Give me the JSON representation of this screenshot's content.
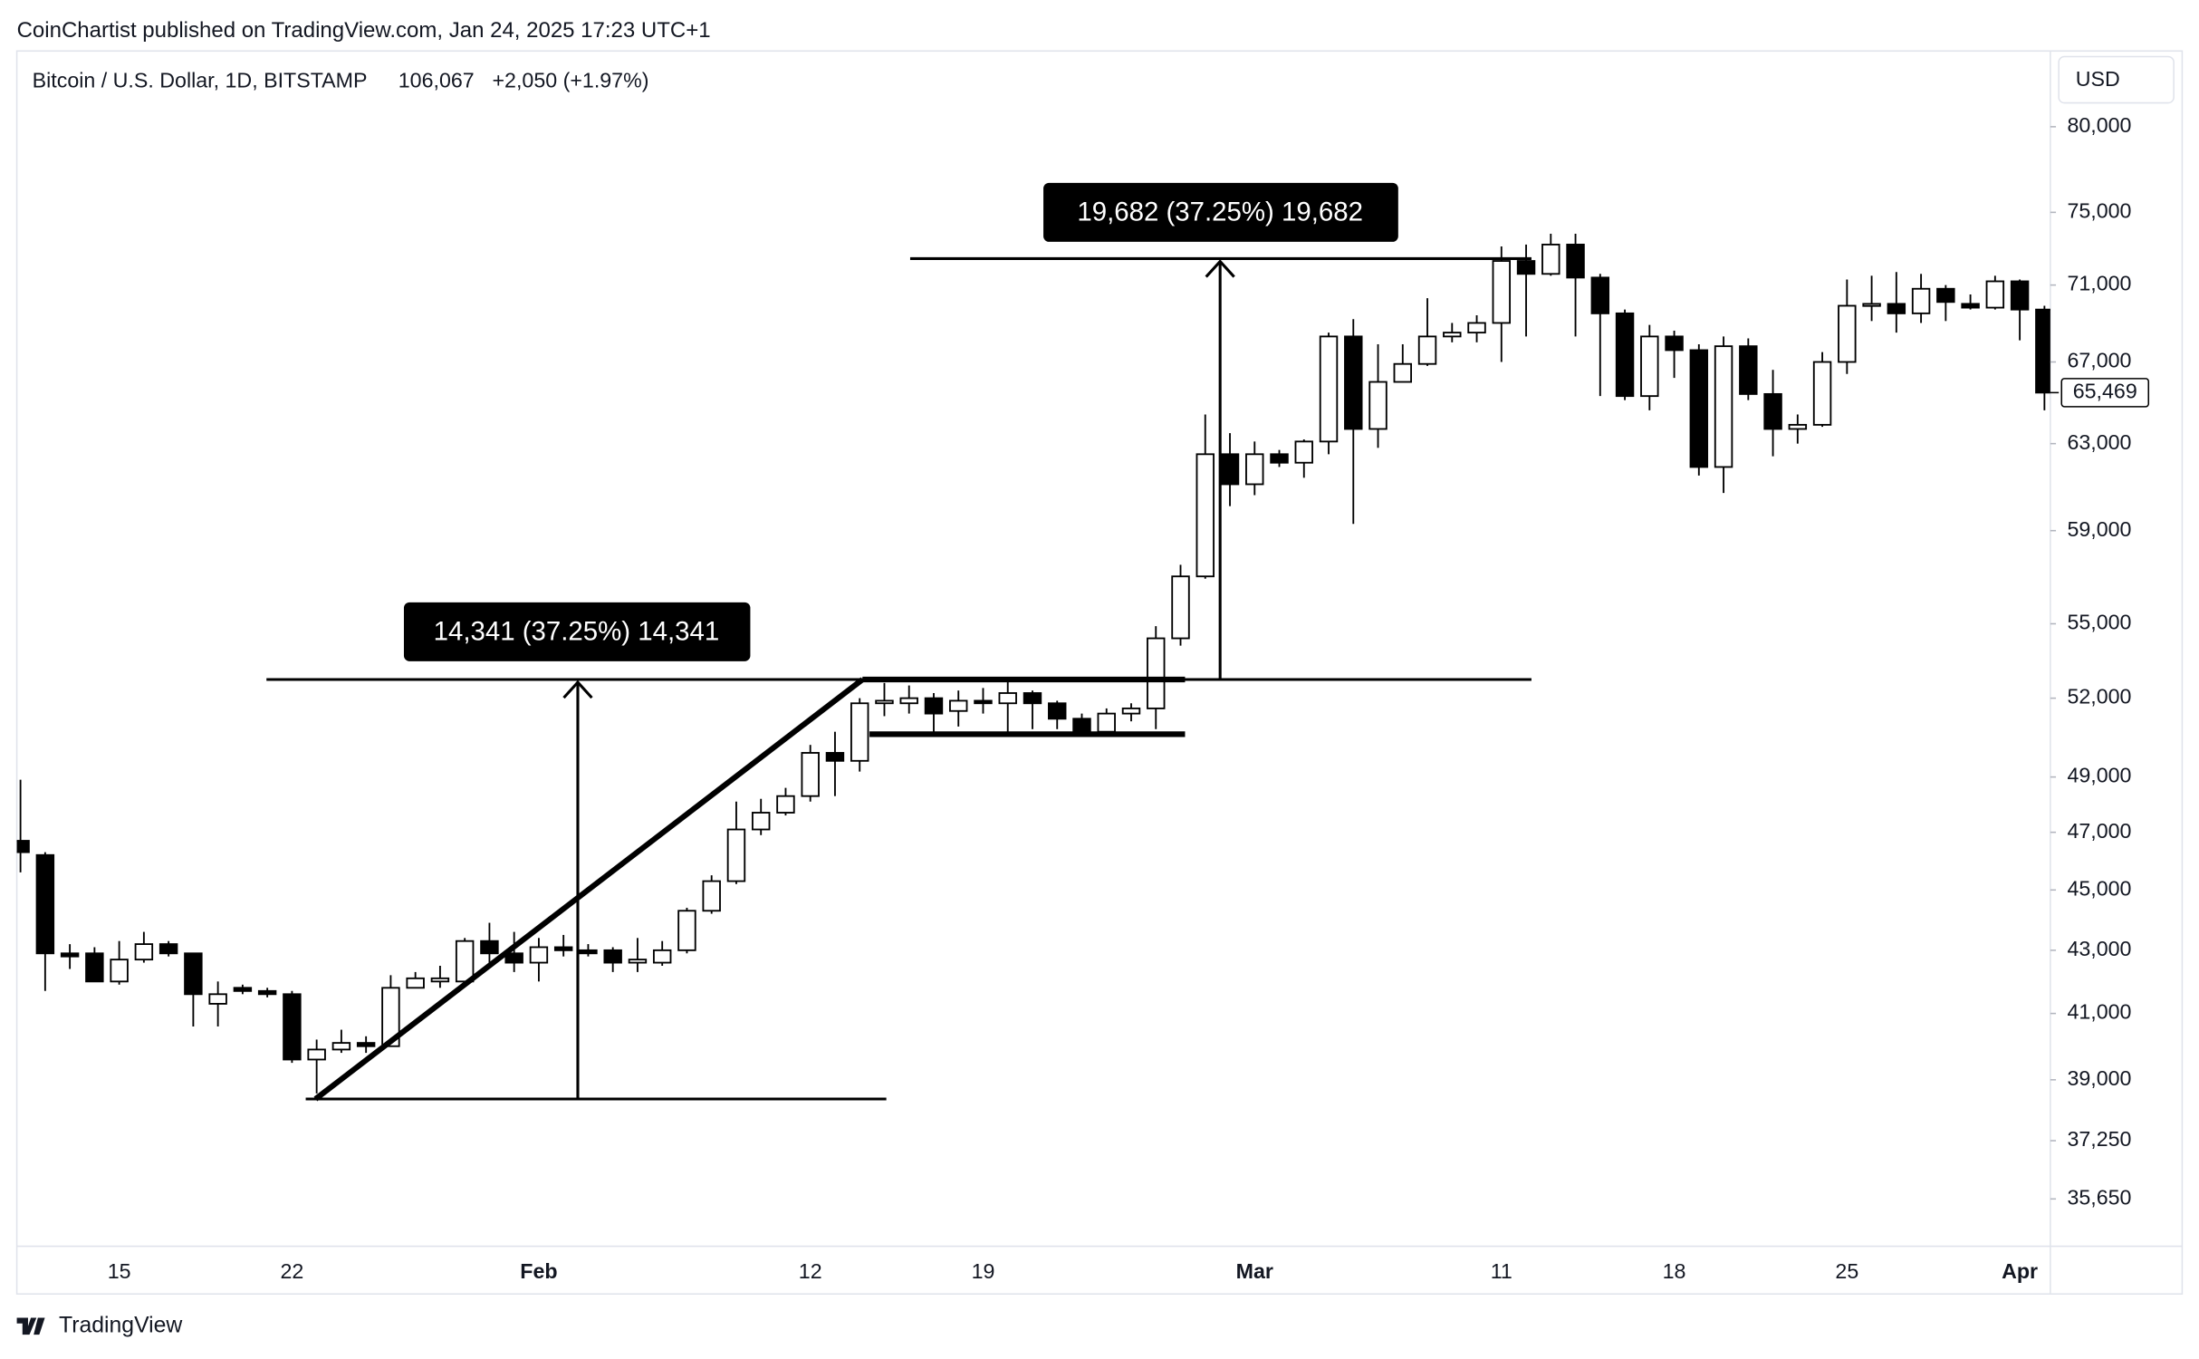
{
  "header": "CoinChartist published on TradingView.com, Jan 24, 2025 17:23 UTC+1",
  "footer": "TradingView",
  "chart_data": {
    "type": "candlestick",
    "title": "Bitcoin / U.S. Dollar, 1D, BITSTAMP",
    "last": "106,067",
    "change": "+2,050 (+1.97%)",
    "currency": "USD",
    "annotations": [
      "14,341 (37.25%) 14,341",
      "19,682 (37.25%) 19,682"
    ],
    "categories": [
      null,
      null,
      null,
      null,
      "15",
      null,
      null,
      null,
      null,
      null,
      null,
      "22",
      null,
      null,
      null,
      null,
      null,
      null,
      null,
      null,
      null,
      "Feb",
      null,
      null,
      null,
      null,
      null,
      null,
      null,
      null,
      null,
      null,
      "12",
      null,
      null,
      null,
      null,
      null,
      null,
      "19",
      null,
      null,
      null,
      null,
      null,
      null,
      null,
      null,
      null,
      null,
      "Mar",
      null,
      null,
      null,
      null,
      null,
      null,
      null,
      null,
      null,
      "11",
      null,
      null,
      null,
      null,
      null,
      null,
      "18",
      null,
      null,
      null,
      null,
      null,
      null,
      "25",
      null,
      null,
      null,
      null,
      null,
      null,
      "Apr",
      null
    ],
    "open": [
      46700,
      46200,
      42900,
      42900,
      42000,
      42700,
      43200,
      42900,
      41300,
      41800,
      41700,
      41600,
      39600,
      39900,
      40100,
      40000,
      41800,
      42000,
      42000,
      43300,
      42900,
      42600,
      43100,
      43000,
      43000,
      42600,
      42600,
      43000,
      44300,
      45300,
      47100,
      47700,
      48300,
      49900,
      49600,
      51800,
      51800,
      52000,
      51500,
      51900,
      51800,
      52200,
      51800,
      51200,
      50700,
      51400,
      51600,
      54400,
      57000,
      62500,
      61100,
      62500,
      62100,
      63100,
      68300,
      63700,
      66000,
      66900,
      68300,
      68500,
      69000,
      72300,
      71600,
      73200,
      71400,
      69500,
      65300,
      68300,
      67600,
      61900,
      67800,
      65400,
      63700,
      63900,
      67000,
      69900,
      70000,
      69500,
      70800,
      70000,
      69800,
      71200,
      69700
    ],
    "high": [
      48900,
      46300,
      43200,
      43100,
      43300,
      43600,
      43300,
      42900,
      42000,
      41900,
      41800,
      41700,
      40200,
      40500,
      40300,
      42200,
      42300,
      42500,
      43400,
      43900,
      43600,
      43400,
      43500,
      43200,
      43100,
      43400,
      43300,
      44400,
      45500,
      48100,
      48200,
      48600,
      50200,
      50700,
      52000,
      52600,
      52500,
      52200,
      52300,
      52400,
      52800,
      52300,
      51900,
      51400,
      51600,
      51800,
      54900,
      57500,
      64400,
      63500,
      63100,
      62700,
      63200,
      68500,
      69200,
      67900,
      67900,
      70300,
      69000,
      69400,
      73100,
      73200,
      73800,
      73800,
      71600,
      69700,
      68900,
      68600,
      67900,
      68300,
      68200,
      66600,
      64400,
      67500,
      71300,
      71500,
      71700,
      71600,
      71000,
      70500,
      71500,
      71300,
      69900
    ],
    "low": [
      45600,
      41700,
      42400,
      42000,
      41900,
      42600,
      42800,
      40600,
      40600,
      41600,
      41500,
      39500,
      38600,
      39800,
      39800,
      40000,
      41800,
      41800,
      41900,
      42600,
      42300,
      42000,
      42800,
      42800,
      42300,
      42300,
      42500,
      42900,
      44200,
      45200,
      46900,
      47600,
      48100,
      48300,
      49200,
      51300,
      51400,
      50600,
      50900,
      51400,
      50700,
      50800,
      50800,
      50600,
      50500,
      51100,
      50800,
      54100,
      56900,
      60100,
      60600,
      61900,
      61400,
      62500,
      59300,
      62800,
      66000,
      66800,
      68000,
      68000,
      67000,
      68300,
      71500,
      68300,
      65300,
      65100,
      64600,
      66200,
      61500,
      60700,
      65100,
      62400,
      63000,
      63800,
      66400,
      69100,
      68500,
      69000,
      69100,
      69700,
      69700,
      68100,
      64600
    ],
    "close": [
      46300,
      42900,
      42800,
      42000,
      42700,
      43200,
      42900,
      41600,
      41600,
      41700,
      41600,
      39600,
      39900,
      40100,
      40000,
      41800,
      42100,
      42100,
      43300,
      42900,
      42600,
      43100,
      43000,
      42900,
      42600,
      42700,
      43000,
      44300,
      45300,
      47100,
      47700,
      48300,
      49900,
      49600,
      51800,
      51900,
      52000,
      51400,
      51900,
      51800,
      52200,
      51800,
      51200,
      50700,
      51400,
      51600,
      54400,
      57000,
      62500,
      61100,
      62500,
      62100,
      63100,
      68300,
      63700,
      66000,
      66900,
      68300,
      68500,
      69000,
      72300,
      71600,
      73200,
      71400,
      69500,
      65300,
      68300,
      67600,
      61900,
      67800,
      65400,
      63700,
      63900,
      67000,
      69900,
      70000,
      69500,
      70800,
      70100,
      69800,
      71200,
      69700,
      65469
    ],
    "up_color": "#ffffff",
    "down_color": "#000000",
    "ylim": [
      34400,
      84700
    ],
    "log_scale": true,
    "grid": false,
    "yticks": [
      {
        "value": 35650,
        "label": "35,650"
      },
      {
        "value": 37250,
        "label": "37,250"
      },
      {
        "value": 39000,
        "label": "39,000"
      },
      {
        "value": 41000,
        "label": "41,000"
      },
      {
        "value": 43000,
        "label": "43,000"
      },
      {
        "value": 45000,
        "label": "45,000"
      },
      {
        "value": 47000,
        "label": "47,000"
      },
      {
        "value": 49000,
        "label": "49,000"
      },
      {
        "value": 52000,
        "label": "52,000"
      },
      {
        "value": 55000,
        "label": "55,000"
      },
      {
        "value": 59000,
        "label": "59,000"
      },
      {
        "value": 63000,
        "label": "63,000"
      },
      {
        "value": 67000,
        "label": "67,000"
      },
      {
        "value": 71000,
        "label": "71,000"
      },
      {
        "value": 75000,
        "label": "75,000"
      },
      {
        "value": 80000,
        "label": "80,000"
      }
    ],
    "last_price": {
      "value": 65469,
      "label": "65,469"
    }
  }
}
